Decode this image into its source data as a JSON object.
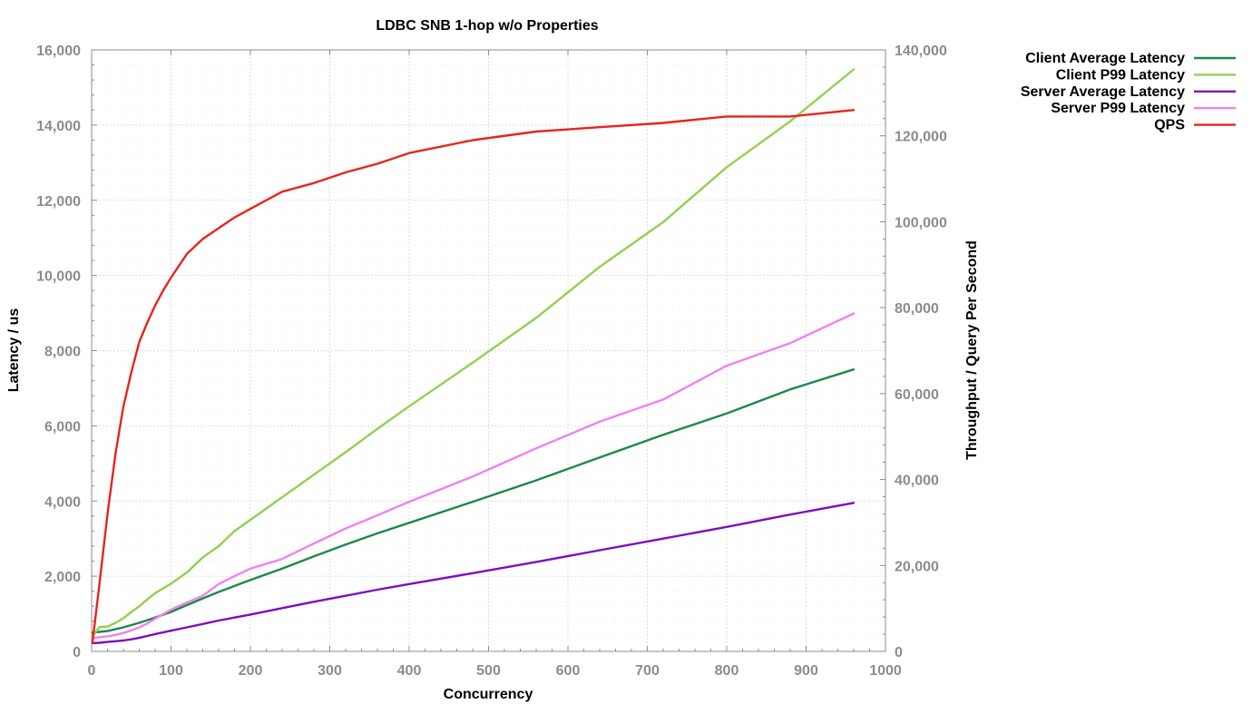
{
  "chart_data": {
    "type": "line",
    "title": "LDBC SNB 1-hop w/o Properties",
    "xlabel": "Concurrency",
    "ylabel": "Latency / us",
    "y2label": "Throughput / Query Per Second",
    "xlim": [
      0,
      1000
    ],
    "ylim": [
      0,
      16000
    ],
    "y2lim": [
      0,
      140000
    ],
    "xticks": [
      "0",
      "100",
      "200",
      "300",
      "400",
      "500",
      "600",
      "700",
      "800",
      "900",
      "1000"
    ],
    "yticks": [
      "0",
      "2,000",
      "4,000",
      "6,000",
      "8,000",
      "10,000",
      "12,000",
      "14,000",
      "16,000"
    ],
    "y2ticks": [
      "0",
      "20,000",
      "40,000",
      "60,000",
      "80,000",
      "100,000",
      "120,000",
      "140,000"
    ],
    "grid": true,
    "legend_position": "top-right, outside plot",
    "series": [
      {
        "name": "Client Average Latency",
        "axis": "left",
        "color": "#1a8a4a",
        "x": [
          1,
          10,
          20,
          30,
          40,
          50,
          60,
          70,
          80,
          100,
          120,
          140,
          160,
          180,
          200,
          240,
          280,
          320,
          360,
          400,
          480,
          560,
          640,
          720,
          800,
          880,
          960
        ],
        "y": [
          500,
          520,
          540,
          590,
          640,
          700,
          760,
          830,
          900,
          1050,
          1230,
          1410,
          1580,
          1740,
          1900,
          2200,
          2530,
          2840,
          3140,
          3420,
          3980,
          4550,
          5160,
          5760,
          6330,
          6970,
          7500
        ]
      },
      {
        "name": "Client P99 Latency",
        "axis": "left",
        "color": "#92d050",
        "x": [
          1,
          10,
          20,
          30,
          40,
          50,
          60,
          70,
          80,
          100,
          120,
          140,
          160,
          180,
          200,
          240,
          280,
          320,
          360,
          400,
          480,
          560,
          640,
          720,
          800,
          880,
          960
        ],
        "y": [
          400,
          650,
          660,
          760,
          880,
          1050,
          1200,
          1380,
          1550,
          1800,
          2100,
          2500,
          2800,
          3200,
          3500,
          4100,
          4700,
          5300,
          5920,
          6520,
          7680,
          8870,
          10230,
          11420,
          12880,
          14100,
          15480
        ]
      },
      {
        "name": "Server Average Latency",
        "axis": "left",
        "color": "#7d0dc3",
        "x": [
          1,
          10,
          20,
          30,
          40,
          50,
          60,
          70,
          80,
          100,
          120,
          140,
          160,
          180,
          200,
          240,
          280,
          320,
          360,
          400,
          480,
          560,
          640,
          720,
          800,
          880,
          960
        ],
        "y": [
          220,
          230,
          250,
          270,
          290,
          320,
          360,
          410,
          460,
          550,
          640,
          730,
          820,
          900,
          980,
          1150,
          1320,
          1480,
          1640,
          1790,
          2080,
          2380,
          2690,
          3000,
          3310,
          3640,
          3950
        ]
      },
      {
        "name": "Server P99 Latency",
        "axis": "left",
        "color": "#ee82ee",
        "x": [
          1,
          10,
          20,
          30,
          40,
          50,
          60,
          70,
          80,
          100,
          120,
          140,
          160,
          180,
          200,
          240,
          280,
          320,
          360,
          400,
          480,
          560,
          640,
          720,
          800,
          880,
          960
        ],
        "y": [
          350,
          380,
          400,
          440,
          490,
          560,
          640,
          740,
          870,
          1110,
          1300,
          1480,
          1790,
          2000,
          2200,
          2460,
          2870,
          3270,
          3620,
          3980,
          4650,
          5400,
          6110,
          6700,
          7600,
          8200,
          8990
        ]
      },
      {
        "name": "QPS",
        "axis": "right",
        "color": "#e8241c",
        "x": [
          1,
          10,
          20,
          30,
          40,
          50,
          60,
          70,
          80,
          90,
          100,
          120,
          140,
          160,
          180,
          200,
          240,
          280,
          320,
          360,
          400,
          480,
          560,
          640,
          720,
          800,
          880,
          960
        ],
        "y": [
          2000,
          16000,
          32000,
          46000,
          57000,
          65000,
          72000,
          76500,
          80500,
          84000,
          87000,
          92500,
          96000,
          98500,
          101000,
          103000,
          107000,
          109000,
          111500,
          113500,
          116000,
          119000,
          121000,
          122000,
          123000,
          124500,
          124500,
          126000
        ]
      }
    ]
  }
}
